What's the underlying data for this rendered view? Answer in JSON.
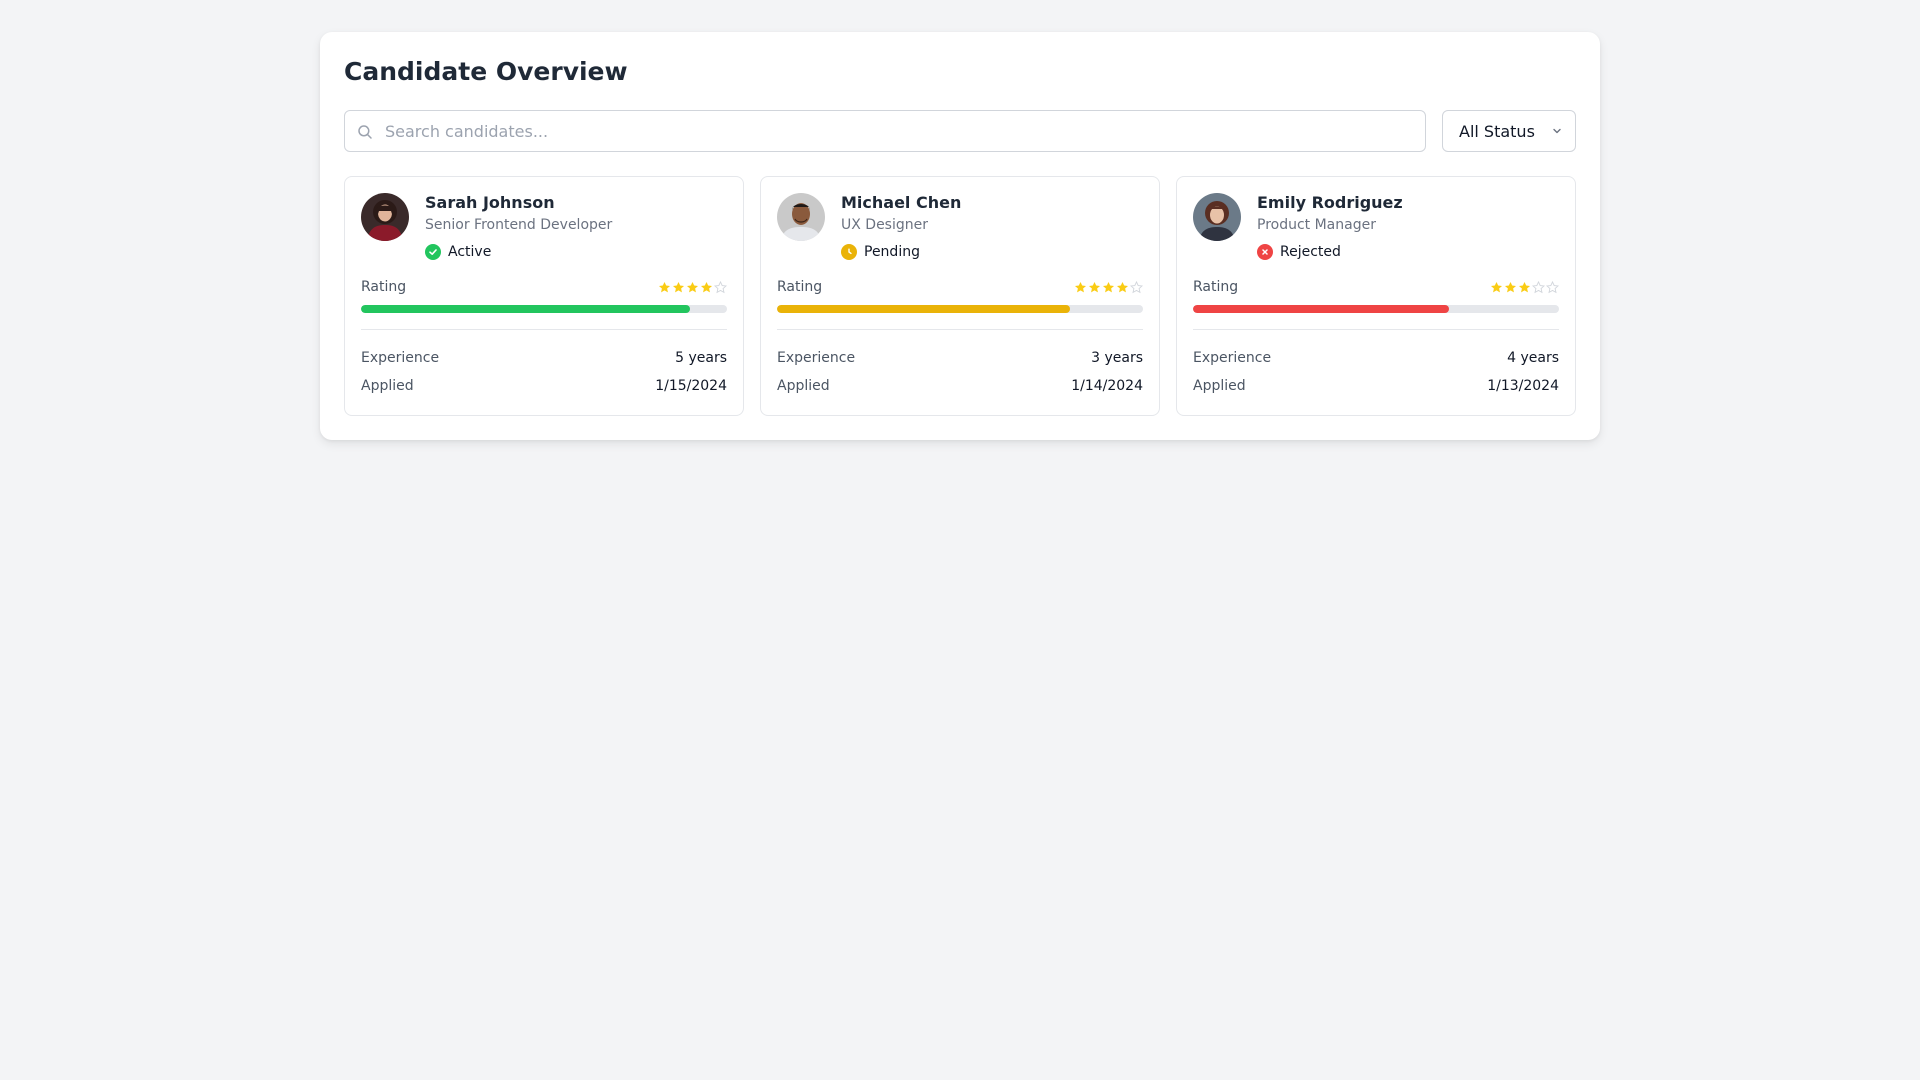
{
  "header": {
    "title": "Candidate Overview"
  },
  "search": {
    "placeholder": "Search candidates...",
    "value": ""
  },
  "filter": {
    "selected": "All Status"
  },
  "labels": {
    "rating": "Rating",
    "experience": "Experience",
    "applied": "Applied"
  },
  "candidates": [
    {
      "name": "Sarah Johnson",
      "role": "Senior Frontend Developer",
      "status": "Active",
      "status_color": "#22c55e",
      "status_icon": "check-icon",
      "rating": 4,
      "rating_max": 5,
      "rating_progress": 0.9,
      "bar_color": "#22c55e",
      "experience": "5 years",
      "applied": "1/15/2024"
    },
    {
      "name": "Michael Chen",
      "role": "UX Designer",
      "status": "Pending",
      "status_color": "#eab308",
      "status_icon": "clock-icon",
      "rating": 4,
      "rating_max": 5,
      "rating_progress": 0.8,
      "bar_color": "#eab308",
      "experience": "3 years",
      "applied": "1/14/2024"
    },
    {
      "name": "Emily Rodriguez",
      "role": "Product Manager",
      "status": "Rejected",
      "status_color": "#ef4444",
      "status_icon": "x-icon",
      "rating": 3,
      "rating_max": 5,
      "rating_progress": 0.7,
      "bar_color": "#ef4444",
      "experience": "4 years",
      "applied": "1/13/2024"
    }
  ],
  "colors": {
    "star_filled": "#facc15",
    "star_empty": "#d1d5db"
  }
}
